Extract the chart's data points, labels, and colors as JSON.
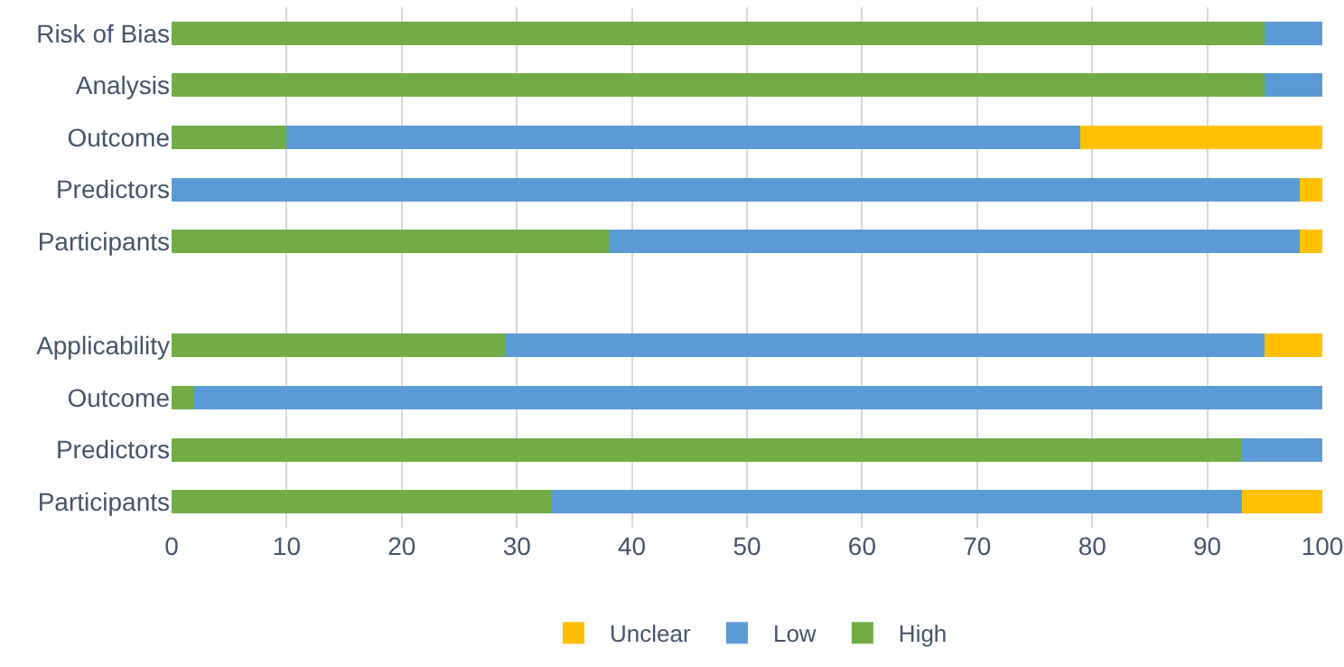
{
  "chart_data": {
    "type": "bar",
    "orientation": "horizontal",
    "stacked": true,
    "categories": [
      "Risk of Bias",
      "Analysis",
      "Outcome",
      "Predictors",
      "Participants",
      null,
      "Applicability",
      "Outcome",
      "Predictors",
      "Participants"
    ],
    "series": [
      {
        "name": "High",
        "color": "#70ad47",
        "values": [
          95,
          95,
          10,
          0,
          38,
          null,
          29,
          2,
          93,
          33
        ]
      },
      {
        "name": "Low",
        "color": "#5b9bd5",
        "values": [
          5,
          5,
          69,
          98,
          60,
          null,
          66,
          98,
          7,
          60
        ]
      },
      {
        "name": "Unclear",
        "color": "#ffc000",
        "values": [
          0,
          0,
          21,
          2,
          2,
          null,
          5,
          0,
          0,
          7
        ]
      }
    ],
    "xlim": [
      0,
      100
    ],
    "xticks": [
      0,
      10,
      20,
      30,
      40,
      50,
      60,
      70,
      80,
      90,
      100
    ],
    "grid": "x",
    "legend": "bottom"
  }
}
